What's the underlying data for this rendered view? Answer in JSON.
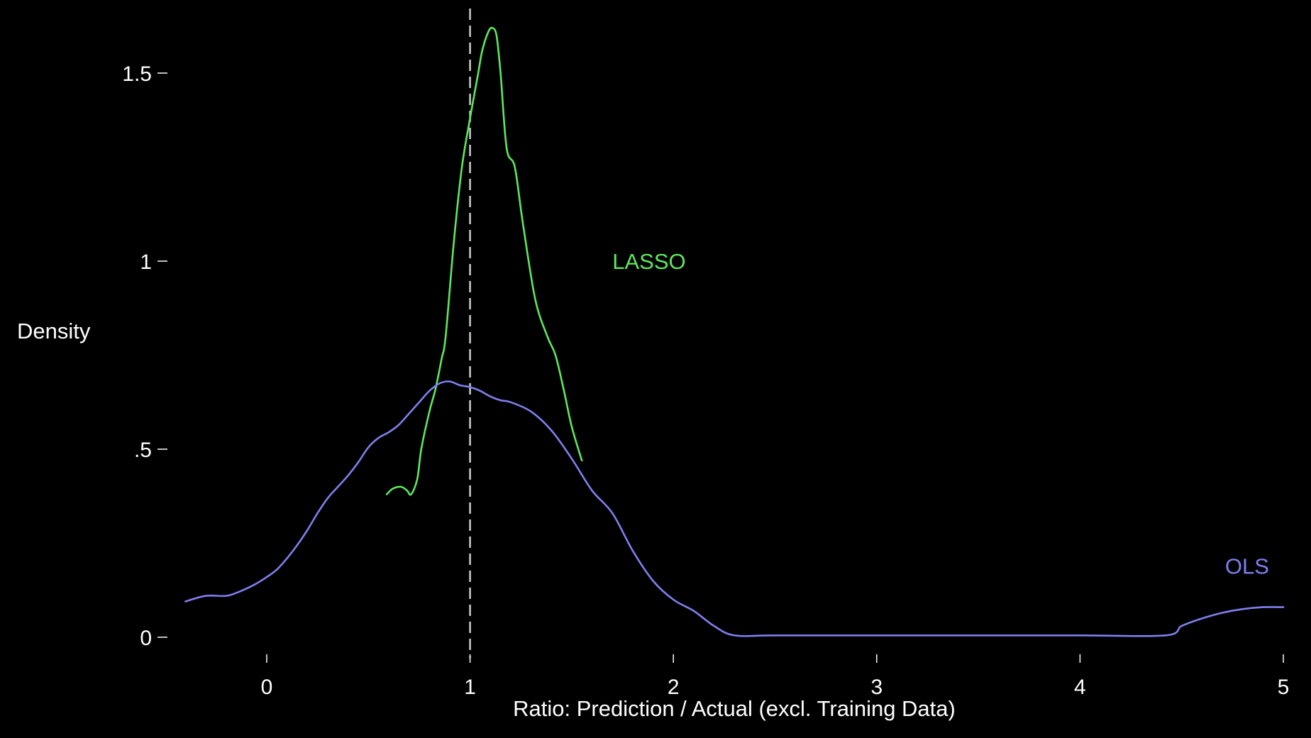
{
  "chart_data": {
    "type": "line",
    "title": "",
    "xlabel": "Ratio: Prediction / Actual (excl. Training Data)",
    "ylabel": "Density",
    "xlim": [
      -0.48,
      5.0
    ],
    "ylim": [
      0,
      1.63
    ],
    "x_ticks": [
      0,
      1,
      2,
      3,
      4,
      5
    ],
    "x_tick_labels": [
      "0",
      "1",
      "2",
      "3",
      "4",
      "5"
    ],
    "y_ticks": [
      0,
      0.5,
      1,
      1.5
    ],
    "y_tick_labels": [
      "0",
      ".5",
      "1",
      "1.5"
    ],
    "reference_line": {
      "x": 1,
      "style": "dashed",
      "color": "#cfcfcf"
    },
    "grid": false,
    "legend": "none (direct labels)",
    "series": [
      {
        "name": "LASSO",
        "color": "#5ee85e",
        "label_at": {
          "x": 1.7,
          "y": 1.0
        },
        "x": [
          0.59,
          0.62,
          0.66,
          0.69,
          0.71,
          0.74,
          0.76,
          0.8,
          0.83,
          0.86,
          0.88,
          0.92,
          0.96,
          1.0,
          1.04,
          1.06,
          1.09,
          1.11,
          1.13,
          1.15,
          1.18,
          1.22,
          1.26,
          1.32,
          1.38,
          1.42,
          1.46,
          1.5,
          1.55
        ],
        "y": [
          0.38,
          0.395,
          0.4,
          0.39,
          0.38,
          0.42,
          0.5,
          0.6,
          0.66,
          0.74,
          0.8,
          1.05,
          1.25,
          1.38,
          1.5,
          1.56,
          1.61,
          1.62,
          1.6,
          1.5,
          1.3,
          1.25,
          1.1,
          0.9,
          0.8,
          0.75,
          0.66,
          0.56,
          0.47
        ]
      },
      {
        "name": "OLS",
        "color": "#7f7fee",
        "label_at": {
          "x": 4.93,
          "y": 0.19
        },
        "x": [
          -0.4,
          -0.3,
          -0.2,
          -0.14,
          -0.06,
          0.0,
          0.05,
          0.1,
          0.15,
          0.2,
          0.25,
          0.3,
          0.35,
          0.4,
          0.45,
          0.5,
          0.55,
          0.6,
          0.65,
          0.7,
          0.75,
          0.8,
          0.85,
          0.9,
          0.95,
          1.0,
          1.05,
          1.1,
          1.15,
          1.2,
          1.3,
          1.4,
          1.5,
          1.6,
          1.7,
          1.8,
          1.9,
          2.0,
          2.1,
          2.2,
          2.3,
          2.5,
          3.0,
          3.5,
          4.0,
          4.42,
          4.5,
          4.6,
          4.7,
          4.8,
          4.9,
          5.0
        ],
        "y": [
          0.095,
          0.11,
          0.11,
          0.12,
          0.14,
          0.16,
          0.18,
          0.21,
          0.245,
          0.285,
          0.33,
          0.37,
          0.4,
          0.43,
          0.465,
          0.505,
          0.53,
          0.545,
          0.565,
          0.595,
          0.625,
          0.655,
          0.675,
          0.68,
          0.67,
          0.665,
          0.655,
          0.64,
          0.63,
          0.625,
          0.6,
          0.55,
          0.475,
          0.39,
          0.33,
          0.23,
          0.15,
          0.1,
          0.07,
          0.03,
          0.005,
          0.005,
          0.005,
          0.005,
          0.005,
          0.005,
          0.03,
          0.05,
          0.065,
          0.075,
          0.08,
          0.08
        ]
      }
    ]
  }
}
